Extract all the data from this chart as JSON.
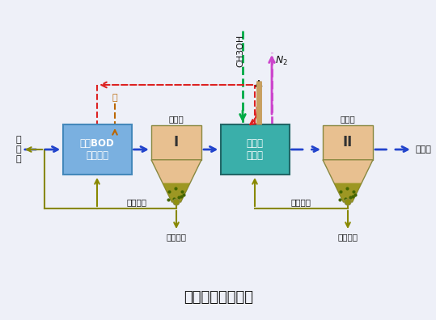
{
  "bg_color": "#eef0f8",
  "title": "两级生物脱氮工艺",
  "title_fontsize": 13,
  "box1_label": "去除BOD\n硝化氧化",
  "box1_color": "#7ab0e0",
  "box1_edge": "#4488bb",
  "box2_label": "反硝化\n反应器",
  "box2_color": "#3aafaa",
  "box2_edge": "#226666",
  "settler_fill": "#e8c090",
  "settler_sand": "#909010",
  "settler_edge": "#888840",
  "input_label": "原\n废\n水",
  "output_label": "处理水",
  "settler1_label": "沉淀池",
  "settler1_roman": "I",
  "settler2_label": "沉淀池",
  "settler2_roman": "II",
  "alkali_label": "碱",
  "ch3oh_label": "CH3OH",
  "n2_label": "N2",
  "sludge_return1": "污泥回流",
  "sludge_return2": "污泥回流",
  "excess_sludge1": "剩余污泥",
  "excess_sludge2": "剩余污泥",
  "main_flow_color": "#2244cc",
  "sludge_color": "#888800",
  "recycle_color": "#dd2222",
  "ch3oh_color": "#00aa44",
  "n2_color": "#cc44cc",
  "alkali_color": "#bb6600",
  "tube_color": "#c8a060",
  "black": "#111111"
}
